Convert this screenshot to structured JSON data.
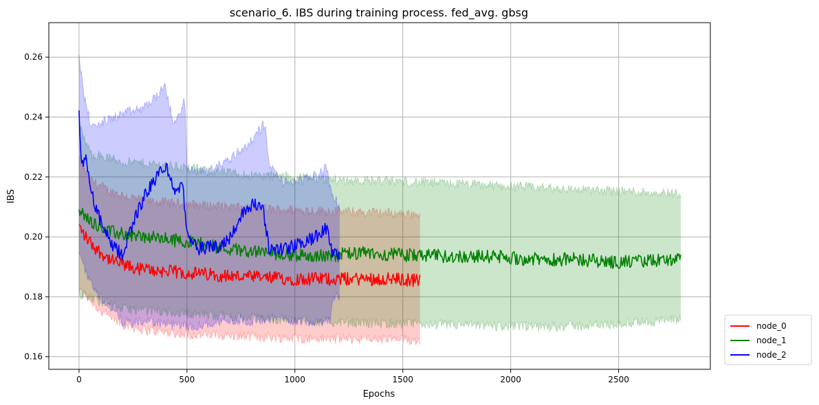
{
  "chart_data": {
    "type": "line",
    "title": "scenario_6. IBS during training process. fed_avg. gbsg",
    "xlabel": "Epochs",
    "ylabel": "IBS",
    "xlim": [
      -140,
      2925
    ],
    "ylim": [
      0.1558,
      0.2715
    ],
    "xticks": [
      0,
      500,
      1000,
      1500,
      2000,
      2500
    ],
    "xtick_labels": [
      "0",
      "500",
      "1000",
      "1500",
      "2000",
      "2500"
    ],
    "yticks": [
      0.16,
      0.18,
      0.2,
      0.22,
      0.24,
      0.26
    ],
    "ytick_labels": [
      "0.16",
      "0.18",
      "0.20",
      "0.22",
      "0.24",
      "0.26"
    ],
    "grid": true,
    "legend_position": "outside-right-bottom",
    "series": [
      {
        "name": "node_0",
        "color": "#ff0000",
        "x_end": 1580,
        "mean": [
          [
            0,
            0.2035
          ],
          [
            30,
            0.2
          ],
          [
            80,
            0.196
          ],
          [
            150,
            0.192
          ],
          [
            250,
            0.1895
          ],
          [
            400,
            0.1885
          ],
          [
            600,
            0.1875
          ],
          [
            800,
            0.1865
          ],
          [
            1000,
            0.186
          ],
          [
            1200,
            0.186
          ],
          [
            1400,
            0.186
          ],
          [
            1580,
            0.1855
          ]
        ],
        "upper": [
          [
            0,
            0.226
          ],
          [
            50,
            0.219
          ],
          [
            150,
            0.215
          ],
          [
            300,
            0.212
          ],
          [
            500,
            0.211
          ],
          [
            800,
            0.2095
          ],
          [
            1000,
            0.209
          ],
          [
            1200,
            0.2085
          ],
          [
            1400,
            0.208
          ],
          [
            1580,
            0.2075
          ]
        ],
        "lower": [
          [
            0,
            0.182
          ],
          [
            40,
            0.18
          ],
          [
            100,
            0.175
          ],
          [
            200,
            0.171
          ],
          [
            300,
            0.169
          ],
          [
            500,
            0.1675
          ],
          [
            700,
            0.167
          ],
          [
            900,
            0.1665
          ],
          [
            1100,
            0.166
          ],
          [
            1300,
            0.166
          ],
          [
            1580,
            0.1655
          ]
        ]
      },
      {
        "name": "node_1",
        "color": "#008000",
        "x_end": 2790,
        "mean": [
          [
            0,
            0.2085
          ],
          [
            50,
            0.2055
          ],
          [
            150,
            0.2015
          ],
          [
            300,
            0.2
          ],
          [
            500,
            0.1985
          ],
          [
            700,
            0.196
          ],
          [
            900,
            0.1945
          ],
          [
            1100,
            0.1935
          ],
          [
            1300,
            0.1945
          ],
          [
            1500,
            0.194
          ],
          [
            1700,
            0.1935
          ],
          [
            1900,
            0.1935
          ],
          [
            2100,
            0.1925
          ],
          [
            2300,
            0.1925
          ],
          [
            2500,
            0.1915
          ],
          [
            2790,
            0.1925
          ]
        ],
        "upper": [
          [
            0,
            0.237
          ],
          [
            50,
            0.228
          ],
          [
            200,
            0.225
          ],
          [
            400,
            0.224
          ],
          [
            600,
            0.222
          ],
          [
            800,
            0.2205
          ],
          [
            1000,
            0.22
          ],
          [
            1200,
            0.219
          ],
          [
            1500,
            0.2185
          ],
          [
            1800,
            0.2175
          ],
          [
            2100,
            0.2165
          ],
          [
            2400,
            0.2155
          ],
          [
            2790,
            0.2145
          ]
        ],
        "lower": [
          [
            0,
            0.181
          ],
          [
            50,
            0.18
          ],
          [
            200,
            0.176
          ],
          [
            400,
            0.175
          ],
          [
            600,
            0.174
          ],
          [
            800,
            0.173
          ],
          [
            1000,
            0.172
          ],
          [
            1200,
            0.1715
          ],
          [
            1500,
            0.171
          ],
          [
            1800,
            0.1705
          ],
          [
            2100,
            0.17
          ],
          [
            2400,
            0.1705
          ],
          [
            2790,
            0.1725
          ]
        ]
      },
      {
        "name": "node_2",
        "color": "#0000ff",
        "x_end": 1210,
        "mean": [
          [
            0,
            0.243
          ],
          [
            10,
            0.222
          ],
          [
            30,
            0.227
          ],
          [
            60,
            0.214
          ],
          [
            100,
            0.205
          ],
          [
            150,
            0.197
          ],
          [
            200,
            0.194
          ],
          [
            250,
            0.205
          ],
          [
            300,
            0.213
          ],
          [
            350,
            0.219
          ],
          [
            400,
            0.224
          ],
          [
            450,
            0.214
          ],
          [
            480,
            0.219
          ],
          [
            500,
            0.2
          ],
          [
            550,
            0.196
          ],
          [
            650,
            0.197
          ],
          [
            700,
            0.2
          ],
          [
            750,
            0.207
          ],
          [
            800,
            0.211
          ],
          [
            850,
            0.21
          ],
          [
            880,
            0.196
          ],
          [
            950,
            0.196
          ],
          [
            1000,
            0.197
          ],
          [
            1100,
            0.2
          ],
          [
            1150,
            0.203
          ],
          [
            1170,
            0.195
          ],
          [
            1210,
            0.193
          ]
        ],
        "upper": [
          [
            0,
            0.262
          ],
          [
            20,
            0.248
          ],
          [
            60,
            0.236
          ],
          [
            100,
            0.238
          ],
          [
            200,
            0.241
          ],
          [
            300,
            0.243
          ],
          [
            400,
            0.25
          ],
          [
            440,
            0.237
          ],
          [
            490,
            0.246
          ],
          [
            500,
            0.222
          ],
          [
            600,
            0.222
          ],
          [
            700,
            0.226
          ],
          [
            800,
            0.232
          ],
          [
            860,
            0.238
          ],
          [
            880,
            0.224
          ],
          [
            950,
            0.218
          ],
          [
            1050,
            0.219
          ],
          [
            1150,
            0.223
          ],
          [
            1170,
            0.214
          ],
          [
            1210,
            0.21
          ]
        ],
        "lower": [
          [
            0,
            0.195
          ],
          [
            50,
            0.185
          ],
          [
            100,
            0.18
          ],
          [
            200,
            0.172
          ],
          [
            250,
            0.171
          ],
          [
            300,
            0.172
          ],
          [
            400,
            0.171
          ],
          [
            500,
            0.17
          ],
          [
            600,
            0.171
          ],
          [
            700,
            0.172
          ],
          [
            800,
            0.172
          ],
          [
            900,
            0.173
          ],
          [
            1000,
            0.172
          ],
          [
            1100,
            0.172
          ],
          [
            1160,
            0.172
          ],
          [
            1180,
            0.18
          ],
          [
            1210,
            0.18
          ]
        ]
      }
    ]
  }
}
